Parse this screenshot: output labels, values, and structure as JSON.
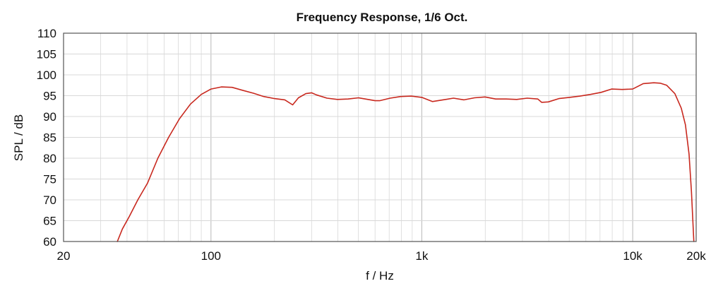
{
  "chart_data": {
    "type": "line",
    "title": "Frequency Response, 1/6 Oct.",
    "xlabel": "f / Hz",
    "ylabel": "SPL / dB",
    "x_scale": "log",
    "xlim": [
      20,
      20000
    ],
    "ylim": [
      60,
      110
    ],
    "grid": true,
    "legend": "none",
    "x_ticks": [
      {
        "value": 20,
        "label": "20"
      },
      {
        "value": 100,
        "label": "100"
      },
      {
        "value": 1000,
        "label": "1k"
      },
      {
        "value": 10000,
        "label": "10k"
      },
      {
        "value": 20000,
        "label": "20k"
      }
    ],
    "y_ticks": [
      {
        "value": 60,
        "label": "60"
      },
      {
        "value": 65,
        "label": "65"
      },
      {
        "value": 70,
        "label": "70"
      },
      {
        "value": 75,
        "label": "75"
      },
      {
        "value": 80,
        "label": "80"
      },
      {
        "value": 85,
        "label": "85"
      },
      {
        "value": 90,
        "label": "90"
      },
      {
        "value": 95,
        "label": "95"
      },
      {
        "value": 100,
        "label": "100"
      },
      {
        "value": 105,
        "label": "105"
      },
      {
        "value": 110,
        "label": "110"
      }
    ],
    "colors": {
      "line": "#c8281e",
      "grid": "#d8d8d8",
      "frame": "#555555",
      "text": "#111111"
    },
    "series": [
      {
        "x": [
          36,
          38,
          41,
          45,
          50,
          56,
          63,
          71,
          80,
          90,
          100,
          112,
          126,
          141,
          159,
          178,
          200,
          224,
          244,
          260,
          282,
          300,
          316,
          355,
          398,
          447,
          501,
          540,
          600,
          631,
          708,
          794,
          891,
          1000,
          1122,
          1259,
          1413,
          1585,
          1778,
          1995,
          2239,
          2512,
          2818,
          3162,
          3548,
          3700,
          3981,
          4467,
          5012,
          5623,
          6310,
          7079,
          7943,
          8913,
          10000,
          11220,
          12589,
          13500,
          14500,
          15849,
          17000,
          17783,
          18500,
          19000,
          19500
        ],
        "y": [
          60,
          63,
          66,
          70,
          74,
          80,
          85,
          89.5,
          93,
          95.3,
          96.6,
          97.1,
          97,
          96.3,
          95.6,
          94.8,
          94.3,
          94,
          92.8,
          94.5,
          95.5,
          95.7,
          95.2,
          94.4,
          94.1,
          94.2,
          94.5,
          94.2,
          93.8,
          93.8,
          94.4,
          94.8,
          94.9,
          94.6,
          93.6,
          94,
          94.4,
          94,
          94.5,
          94.7,
          94.2,
          94.2,
          94.1,
          94.4,
          94.2,
          93.4,
          93.5,
          94.3,
          94.6,
          94.9,
          95.3,
          95.8,
          96.6,
          96.5,
          96.6,
          97.9,
          98.1,
          98,
          97.5,
          95.5,
          92,
          88,
          81,
          72,
          60
        ]
      }
    ]
  }
}
